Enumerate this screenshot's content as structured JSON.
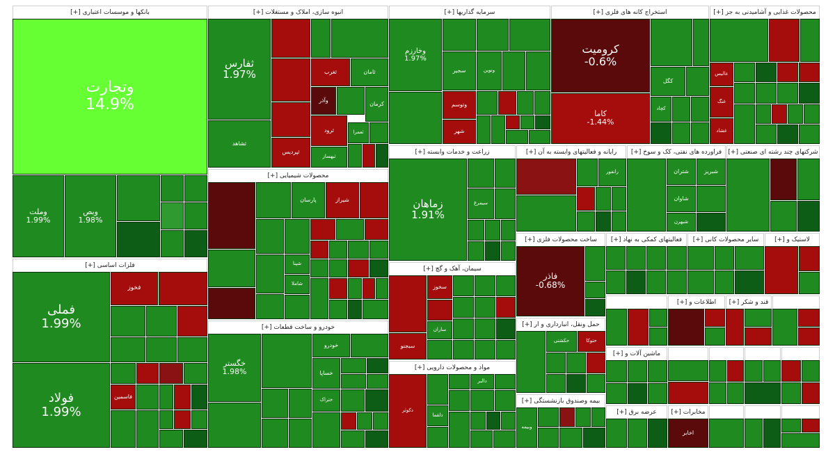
{
  "chart_data": {
    "type": "treemap",
    "colors": {
      "up_strong": "#66ff33",
      "up": "#1f8a1f",
      "up_light": "#2f9a2f",
      "up_dark": "#0d5d16",
      "down": "#a50d0d",
      "down_mid": "#8b1212",
      "down_dark": "#5a0a0a"
    },
    "sectors": [
      {
        "name": "بانکها و موسسات اعتباری [+]"
      },
      {
        "name": "انبوه سازی، املاک و مستغلات [+]"
      },
      {
        "name": "سرمایه گذاریها [+]"
      },
      {
        "name": "استخراج کانه های فلزی [+]"
      },
      {
        "name": "محصولات غذایی و آشامیدنی به جز [+]"
      },
      {
        "name": "فلزات اساسی [+]"
      },
      {
        "name": "محصولات شیمیایی [+]"
      },
      {
        "name": "زراعت و خدمات وابسته [+]"
      },
      {
        "name": "رایانه و فعالیتهای وابسته به آن [+]"
      },
      {
        "name": "فراورده های نفتی، کک و سوخ [+]"
      },
      {
        "name": "شرکتهای چند رشته ای صنعتی [+]"
      },
      {
        "name": "سیمان، آهک و گچ [+]"
      },
      {
        "name": "ساخت محصولات فلزی [+]"
      },
      {
        "name": "فعالیتهای کمکی به نهاد [+]"
      },
      {
        "name": "سایر محصولات کانی [+]"
      },
      {
        "name": "لاستیک و [+]"
      },
      {
        "name": "خودرو و ساخت قطعات [+]"
      },
      {
        "name": "حمل ونقل، انبارداری و ار [+]"
      },
      {
        "name": "مواد و محصولات دارویی [+]"
      },
      {
        "name": "بیمه وصندوق بازنشستگی [+]"
      },
      {
        "name": "اطلاعات و [+]"
      },
      {
        "name": "قند و شکر [+]"
      },
      {
        "name": "ماشین آلات و [+]"
      },
      {
        "name": "عرضه برق [+]"
      },
      {
        "name": "مخابرات [+]"
      }
    ],
    "tiles": [
      {
        "name": "وتجارت",
        "change": "14.9%",
        "sector": 0
      },
      {
        "name": "وملت",
        "change": "1.99%",
        "sector": 0
      },
      {
        "name": "وبص",
        "change": "1.98%",
        "sector": 0
      },
      {
        "name": "ثفارس",
        "change": "1.97%",
        "sector": 1
      },
      {
        "name": "وخارزم",
        "change": "1.97%",
        "sector": 2
      },
      {
        "name": "کرومیت",
        "change": "-0.6%",
        "sector": 3
      },
      {
        "name": "کاما",
        "change": "-1.44%",
        "sector": 3
      },
      {
        "name": "فملی",
        "change": "1.99%",
        "sector": 5
      },
      {
        "name": "فولاد",
        "change": "1.99%",
        "sector": 5
      },
      {
        "name": "زماهان",
        "change": "1.91%",
        "sector": 7
      },
      {
        "name": "فاذر",
        "change": "-0.68%",
        "sector": 12
      },
      {
        "name": "خگستر",
        "change": "1.98%",
        "sector": 16
      },
      {
        "name": "ثشاهد",
        "change": "",
        "sector": 1
      },
      {
        "name": "ثامان",
        "change": "",
        "sector": 1
      },
      {
        "name": "ثتران",
        "change": "",
        "sector": 1
      },
      {
        "name": "وآذر",
        "change": "",
        "sector": 1
      },
      {
        "name": "ثرود",
        "change": "",
        "sector": 1
      },
      {
        "name": "کرمان",
        "change": "",
        "sector": 1
      },
      {
        "name": "ثغرب",
        "change": "",
        "sector": 1
      },
      {
        "name": "ثعمرا",
        "change": "",
        "sector": 1
      },
      {
        "name": "ثپردیس",
        "change": "",
        "sector": 1
      },
      {
        "name": "ثبهساز",
        "change": "",
        "sector": 1
      },
      {
        "name": "سجیر",
        "change": "",
        "sector": 2
      },
      {
        "name": "ونوین",
        "change": "",
        "sector": 2
      },
      {
        "name": "وتوسم",
        "change": "",
        "sector": 2
      },
      {
        "name": "شهر",
        "change": "",
        "sector": 2
      },
      {
        "name": "کگل",
        "change": "",
        "sector": 3
      },
      {
        "name": "کچاد",
        "change": "",
        "sector": 3
      },
      {
        "name": "عالیس",
        "change": "",
        "sector": 4
      },
      {
        "name": "غنگ",
        "change": "",
        "sector": 4
      },
      {
        "name": "غشاد",
        "change": "",
        "sector": 4
      },
      {
        "name": "فخوز",
        "change": "",
        "sector": 5
      },
      {
        "name": "فاسمین",
        "change": "",
        "sector": 5
      },
      {
        "name": "شیراز",
        "change": "",
        "sector": 6
      },
      {
        "name": "پارسان",
        "change": "",
        "sector": 6
      },
      {
        "name": "شپنا",
        "change": "",
        "sector": 6
      },
      {
        "name": "شاملا",
        "change": "",
        "sector": 6
      },
      {
        "name": "سیمرغ",
        "change": "",
        "sector": 7
      },
      {
        "name": "رانفور",
        "change": "",
        "sector": 8
      },
      {
        "name": "شتران",
        "change": "",
        "sector": 9
      },
      {
        "name": "شبریز",
        "change": "",
        "sector": 9
      },
      {
        "name": "شاوان",
        "change": "",
        "sector": 9
      },
      {
        "name": "شبهرن",
        "change": "",
        "sector": 9
      },
      {
        "name": "سخوز",
        "change": "",
        "sector": 11
      },
      {
        "name": "ساران",
        "change": "",
        "sector": 11
      },
      {
        "name": "سبجنو",
        "change": "",
        "sector": 11
      },
      {
        "name": "ختراک",
        "change": "",
        "sector": 16
      },
      {
        "name": "خودرو",
        "change": "",
        "sector": 16
      },
      {
        "name": "خساپا",
        "change": "",
        "sector": 16
      },
      {
        "name": "حکشتی",
        "change": "",
        "sector": 17
      },
      {
        "name": "حتوکا",
        "change": "",
        "sector": 17
      },
      {
        "name": "دالبر",
        "change": "",
        "sector": 18
      },
      {
        "name": "دکوثر",
        "change": "",
        "sector": 18
      },
      {
        "name": "دلقما",
        "change": "",
        "sector": 18
      },
      {
        "name": "وبیمه",
        "change": "",
        "sector": 19
      },
      {
        "name": "اخابر",
        "change": "",
        "sector": 24
      }
    ]
  }
}
